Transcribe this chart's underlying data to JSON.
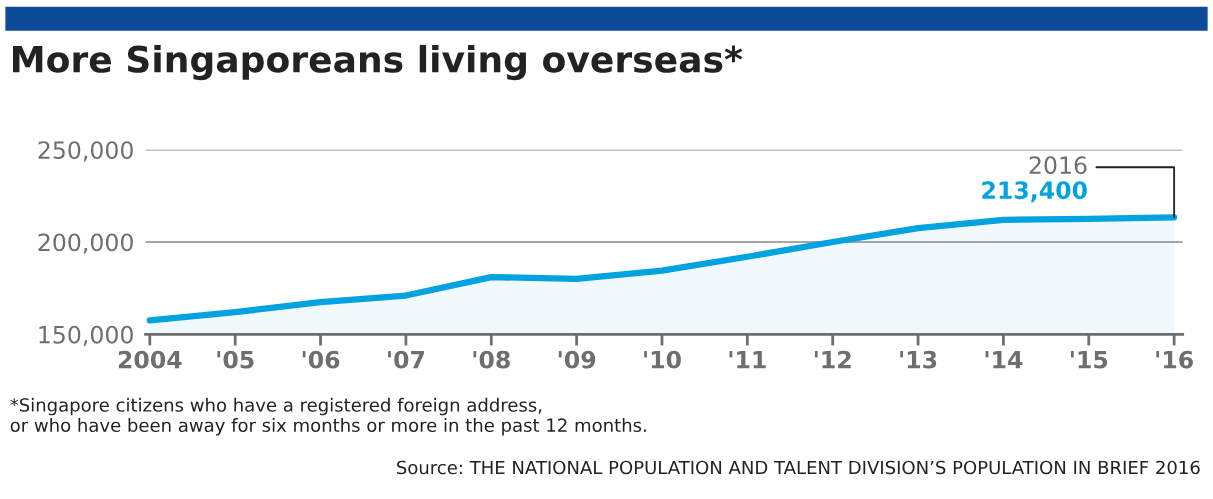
{
  "chart_data": {
    "type": "area",
    "title": "More Singaporeans living overseas*",
    "categories": [
      "2004",
      "'05",
      "'06",
      "'07",
      "'08",
      "'09",
      "'10",
      "'11",
      "'12",
      "'13",
      "'14",
      "'15",
      "'16"
    ],
    "series": [
      {
        "color": "#00a3e0",
        "values": [
          157500,
          162000,
          167400,
          171000,
          181000,
          180000,
          184500,
          192000,
          200000,
          207500,
          212000,
          212600,
          213400
        ]
      }
    ],
    "ylim": [
      150000,
      250000
    ],
    "yticks": [
      {
        "value": 150000,
        "label": "150,000"
      },
      {
        "value": 200000,
        "label": "200,000"
      },
      {
        "value": 250000,
        "label": "250,000"
      }
    ],
    "grid": "y",
    "legend": false,
    "annotations": [
      {
        "text": "2016",
        "x": "'16",
        "y": 213400
      },
      {
        "text": "213,400",
        "x": "'16",
        "y": 213400
      },
      "*Singapore citizens who have a registered foreign address,\nor who have been away for six months or more in the past 12 months.",
      "Source: THE NATIONAL POPULATION AND TALENT DIVISION’S POPULATION IN BRIEF 2016"
    ]
  }
}
